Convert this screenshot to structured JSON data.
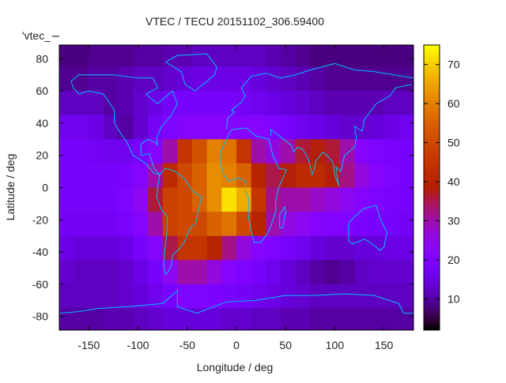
{
  "chart_data": {
    "type": "heatmap",
    "title": "VTEC / TECU 20151102_306.59400",
    "xlabel": "Longitude / deg",
    "ylabel": "Latitude / deg",
    "legend_label": "'vtec_",
    "xlim": [
      -180,
      180
    ],
    "ylim": [
      -88.5,
      88.5
    ],
    "cbrange": [
      2,
      75
    ],
    "xticks": [
      -150,
      -100,
      -50,
      0,
      50,
      100,
      150
    ],
    "yticks": [
      80,
      60,
      40,
      20,
      0,
      -20,
      -40,
      -60,
      -80
    ],
    "cbticks": [
      70,
      60,
      50,
      40,
      30,
      20,
      10
    ],
    "lon_centers": [
      -172.5,
      -157.5,
      -142.5,
      -127.5,
      -112.5,
      -97.5,
      -82.5,
      -67.5,
      -52.5,
      -37.5,
      -22.5,
      -7.5,
      7.5,
      22.5,
      37.5,
      52.5,
      67.5,
      82.5,
      97.5,
      112.5,
      127.5,
      142.5,
      157.5,
      172.5
    ],
    "lat_centers": [
      82.5,
      67.5,
      52.5,
      37.5,
      22.5,
      7.5,
      -7.5,
      -22.5,
      -37.5,
      -52.5,
      -67.5,
      -82.5
    ],
    "values": [
      [
        8,
        8,
        9,
        9,
        9,
        10,
        10,
        11,
        11,
        12,
        12,
        12,
        12,
        12,
        11,
        10,
        9,
        8,
        8,
        8,
        8,
        8,
        8,
        8
      ],
      [
        9,
        9,
        10,
        10,
        11,
        12,
        12,
        13,
        14,
        15,
        15,
        15,
        15,
        14,
        13,
        12,
        11,
        10,
        9,
        9,
        9,
        9,
        9,
        9
      ],
      [
        12,
        12,
        12,
        10,
        11,
        13,
        15,
        17,
        18,
        18,
        18,
        18,
        17,
        16,
        15,
        14,
        13,
        12,
        11,
        11,
        11,
        11,
        12,
        12
      ],
      [
        16,
        16,
        15,
        12,
        10,
        13,
        17,
        20,
        22,
        22,
        22,
        22,
        22,
        22,
        20,
        18,
        16,
        15,
        14,
        13,
        13,
        14,
        15,
        16
      ],
      [
        18,
        18,
        17,
        16,
        16,
        18,
        22,
        30,
        45,
        52,
        60,
        58,
        45,
        30,
        26,
        30,
        36,
        38,
        36,
        30,
        22,
        20,
        19,
        18
      ],
      [
        18,
        18,
        18,
        18,
        19,
        22,
        30,
        42,
        50,
        55,
        62,
        60,
        55,
        40,
        35,
        38,
        42,
        42,
        38,
        32,
        26,
        22,
        20,
        18
      ],
      [
        18,
        18,
        18,
        18,
        20,
        24,
        36,
        48,
        50,
        55,
        62,
        72,
        66,
        45,
        32,
        30,
        30,
        28,
        26,
        24,
        22,
        20,
        19,
        18
      ],
      [
        17,
        17,
        17,
        17,
        19,
        22,
        30,
        48,
        50,
        50,
        55,
        58,
        50,
        40,
        30,
        26,
        24,
        22,
        21,
        20,
        19,
        18,
        18,
        17
      ],
      [
        15,
        14,
        14,
        14,
        15,
        18,
        22,
        35,
        45,
        45,
        40,
        32,
        26,
        22,
        20,
        18,
        16,
        14,
        13,
        13,
        14,
        14,
        15,
        15
      ],
      [
        13,
        12,
        12,
        12,
        13,
        15,
        18,
        24,
        30,
        30,
        26,
        22,
        20,
        18,
        16,
        14,
        12,
        10,
        9,
        10,
        12,
        13,
        13,
        13
      ],
      [
        12,
        12,
        12,
        12,
        13,
        14,
        16,
        18,
        20,
        20,
        19,
        18,
        17,
        16,
        15,
        14,
        13,
        12,
        12,
        12,
        12,
        12,
        12,
        12
      ],
      [
        10,
        10,
        10,
        11,
        11,
        12,
        13,
        14,
        14,
        14,
        14,
        13,
        13,
        12,
        12,
        11,
        11,
        10,
        10,
        10,
        10,
        10,
        10,
        10
      ]
    ],
    "coastline_color": "#00bfff",
    "grid": false
  }
}
